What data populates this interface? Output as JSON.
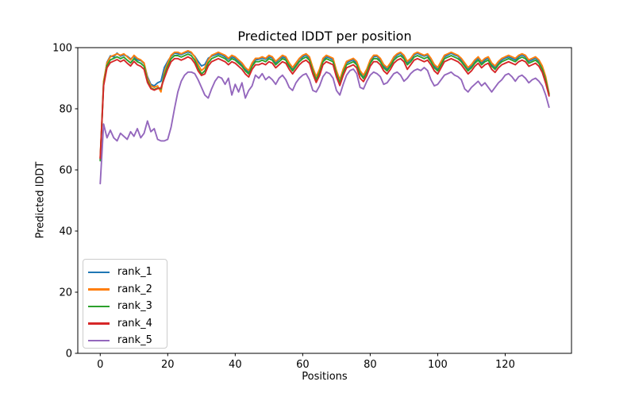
{
  "chart_data": {
    "type": "line",
    "title": "Predicted lDDT per position",
    "xlabel": "Positions",
    "ylabel": "Predicted lDDT",
    "xlim": [
      -6.65,
      139.65
    ],
    "ylim": [
      0,
      100
    ],
    "x_ticks": [
      0,
      20,
      40,
      60,
      80,
      100,
      120
    ],
    "y_ticks": [
      0,
      20,
      40,
      60,
      80,
      100
    ],
    "grid": false,
    "legend_position": "lower left",
    "axes_color": "#000000",
    "x_start": 0,
    "x_step": 1,
    "series": [
      {
        "name": "rank_1",
        "color": "#1f77b4",
        "values": [
          63.5,
          88.5,
          95.2,
          97.3,
          97.0,
          98.2,
          97.2,
          97.6,
          97.2,
          96.3,
          97.1,
          96.0,
          95.8,
          94.8,
          90.5,
          88.0,
          87.5,
          88.5,
          89.0,
          93.5,
          95.5,
          97.2,
          98.2,
          98.0,
          97.7,
          98.2,
          98.6,
          98.2,
          97.2,
          95.5,
          94.0,
          94.5,
          96.5,
          97.2,
          97.6,
          98.0,
          97.6,
          97.0,
          96.2,
          97.0,
          96.5,
          95.5,
          94.5,
          93.0,
          92.0,
          94.5,
          96.0,
          96.2,
          96.6,
          96.2,
          97.0,
          96.6,
          95.0,
          96.2,
          97.0,
          96.5,
          94.5,
          93.0,
          94.6,
          96.2,
          97.0,
          97.6,
          96.5,
          93.0,
          90.0,
          92.6,
          96.0,
          97.0,
          96.6,
          96.0,
          92.0,
          88.8,
          92.5,
          95.0,
          95.6,
          96.0,
          95.0,
          92.0,
          90.5,
          92.6,
          95.5,
          97.0,
          97.2,
          96.0,
          94.0,
          93.0,
          94.6,
          96.6,
          97.6,
          98.2,
          97.0,
          95.0,
          96.2,
          97.6,
          98.2,
          97.6,
          97.2,
          97.6,
          96.0,
          94.0,
          93.0,
          95.0,
          97.0,
          97.6,
          98.2,
          97.6,
          97.2,
          96.0,
          94.5,
          93.0,
          94.0,
          95.5,
          96.6,
          95.0,
          96.0,
          96.6,
          94.5,
          93.5,
          95.0,
          96.0,
          96.6,
          97.0,
          96.5,
          96.0,
          97.0,
          97.6,
          97.0,
          95.5,
          96.0,
          96.6,
          95.5,
          93.5,
          90.0,
          84.5
        ]
      },
      {
        "name": "rank_2",
        "color": "#ff7f0e",
        "values": [
          64.0,
          89.0,
          95.0,
          97.0,
          97.5,
          98.0,
          97.5,
          98.0,
          97.0,
          96.0,
          97.5,
          96.5,
          96.0,
          95.0,
          90.0,
          87.5,
          87.0,
          87.5,
          85.5,
          92.0,
          95.0,
          97.5,
          98.5,
          98.5,
          98.0,
          98.5,
          99.0,
          98.5,
          97.0,
          94.5,
          92.5,
          93.5,
          96.0,
          97.5,
          98.0,
          98.5,
          98.0,
          97.5,
          96.5,
          97.5,
          97.0,
          96.0,
          95.0,
          93.5,
          92.5,
          95.0,
          96.5,
          96.5,
          97.0,
          96.5,
          97.5,
          97.0,
          95.5,
          96.5,
          97.5,
          97.0,
          95.0,
          93.5,
          95.0,
          96.5,
          97.5,
          98.0,
          97.0,
          93.5,
          90.5,
          93.0,
          96.5,
          97.5,
          97.0,
          96.5,
          92.5,
          89.5,
          93.0,
          95.5,
          96.0,
          96.5,
          95.5,
          92.5,
          91.0,
          93.0,
          96.0,
          97.5,
          97.5,
          96.5,
          94.5,
          93.5,
          95.0,
          97.0,
          98.0,
          98.5,
          97.5,
          95.5,
          96.5,
          98.0,
          98.5,
          98.0,
          97.5,
          98.0,
          96.5,
          94.5,
          93.5,
          95.5,
          97.5,
          98.0,
          98.5,
          98.0,
          97.5,
          96.5,
          95.0,
          93.5,
          94.5,
          96.0,
          97.0,
          95.5,
          96.5,
          97.0,
          95.0,
          94.0,
          95.5,
          96.5,
          97.0,
          97.5,
          97.0,
          96.5,
          97.5,
          98.0,
          97.5,
          96.0,
          96.5,
          97.0,
          96.0,
          94.0,
          90.5,
          85.0
        ]
      },
      {
        "name": "rank_3",
        "color": "#2ca02c",
        "values": [
          63.0,
          88.0,
          94.2,
          96.0,
          96.5,
          97.0,
          96.4,
          96.9,
          95.9,
          95.0,
          96.4,
          95.4,
          94.9,
          93.9,
          89.2,
          86.8,
          86.3,
          86.8,
          86.5,
          91.0,
          94.0,
          96.4,
          97.4,
          97.4,
          96.9,
          97.4,
          97.9,
          97.4,
          95.9,
          93.4,
          91.4,
          92.4,
          95.0,
          96.4,
          96.9,
          97.4,
          96.9,
          96.4,
          95.4,
          96.4,
          95.9,
          94.9,
          93.9,
          92.4,
          91.4,
          93.9,
          95.4,
          95.4,
          95.9,
          95.4,
          96.4,
          95.9,
          94.4,
          95.4,
          96.4,
          95.9,
          93.9,
          92.4,
          93.9,
          95.4,
          96.4,
          96.9,
          95.9,
          92.4,
          89.4,
          91.9,
          95.4,
          96.4,
          95.9,
          95.4,
          91.4,
          88.4,
          91.9,
          94.4,
          94.9,
          95.4,
          94.4,
          91.4,
          89.9,
          91.9,
          94.9,
          96.4,
          96.4,
          95.4,
          93.4,
          92.4,
          93.9,
          95.9,
          96.9,
          97.4,
          96.4,
          94.4,
          95.4,
          96.9,
          97.4,
          96.9,
          96.4,
          96.9,
          95.4,
          93.4,
          92.4,
          94.4,
          96.4,
          96.9,
          97.4,
          96.9,
          96.4,
          95.4,
          93.9,
          92.4,
          93.4,
          94.9,
          95.9,
          94.4,
          95.4,
          95.9,
          93.9,
          92.9,
          94.4,
          95.4,
          95.9,
          96.4,
          95.9,
          95.4,
          96.4,
          96.9,
          96.4,
          94.9,
          95.4,
          95.9,
          94.9,
          92.9,
          89.4,
          84.8
        ]
      },
      {
        "name": "rank_4",
        "color": "#d62728",
        "values": [
          63.8,
          87.5,
          93.4,
          95.1,
          95.6,
          96.1,
          95.4,
          96.0,
          94.9,
          94.0,
          95.5,
          94.4,
          93.9,
          92.9,
          88.6,
          86.6,
          86.1,
          86.6,
          86.8,
          90.0,
          93.0,
          95.4,
          96.4,
          96.4,
          95.9,
          96.4,
          97.0,
          96.4,
          94.9,
          92.4,
          90.9,
          91.4,
          94.0,
          95.4,
          95.9,
          96.4,
          95.9,
          95.4,
          94.4,
          95.4,
          94.9,
          93.9,
          92.9,
          91.4,
          90.4,
          92.9,
          94.4,
          94.4,
          94.9,
          94.4,
          95.4,
          94.9,
          93.4,
          94.4,
          95.4,
          94.9,
          92.9,
          91.4,
          92.9,
          94.4,
          95.4,
          95.9,
          94.9,
          91.4,
          88.6,
          90.9,
          94.4,
          95.4,
          94.9,
          94.4,
          90.4,
          87.6,
          90.9,
          93.4,
          93.9,
          94.4,
          93.4,
          90.0,
          88.9,
          90.9,
          93.9,
          95.4,
          95.4,
          94.4,
          92.4,
          91.4,
          92.9,
          94.9,
          95.9,
          96.4,
          95.4,
          92.9,
          94.4,
          95.9,
          96.4,
          95.9,
          95.4,
          95.9,
          94.4,
          92.4,
          91.4,
          93.4,
          95.4,
          95.9,
          96.4,
          95.9,
          95.4,
          94.4,
          92.9,
          91.4,
          92.4,
          93.9,
          94.9,
          93.4,
          94.4,
          94.9,
          92.9,
          91.9,
          93.4,
          94.4,
          94.9,
          95.4,
          94.9,
          94.4,
          95.4,
          95.9,
          95.4,
          93.9,
          94.4,
          94.9,
          93.9,
          91.9,
          88.4,
          84.2
        ]
      },
      {
        "name": "rank_5",
        "color": "#9467bd",
        "values": [
          55.5,
          75.0,
          70.5,
          73.0,
          70.5,
          69.5,
          72.0,
          71.0,
          70.0,
          72.5,
          71.0,
          73.5,
          70.5,
          72.0,
          76.0,
          72.5,
          73.5,
          70.0,
          69.5,
          69.5,
          70.0,
          74.0,
          80.0,
          85.5,
          89.0,
          91.0,
          92.0,
          92.0,
          91.5,
          89.5,
          87.0,
          84.5,
          83.5,
          86.5,
          89.0,
          90.5,
          90.0,
          88.0,
          90.0,
          84.5,
          88.0,
          85.5,
          88.5,
          83.5,
          86.0,
          87.5,
          91.0,
          90.0,
          91.5,
          89.5,
          90.5,
          89.5,
          88.0,
          90.0,
          91.0,
          89.5,
          87.0,
          86.0,
          88.5,
          90.0,
          91.0,
          91.5,
          89.5,
          86.0,
          85.5,
          87.5,
          90.5,
          92.0,
          91.5,
          90.0,
          86.0,
          84.5,
          88.0,
          91.0,
          92.5,
          93.0,
          91.5,
          87.0,
          86.5,
          89.0,
          91.0,
          92.0,
          91.5,
          90.5,
          88.0,
          88.5,
          90.0,
          91.5,
          92.0,
          91.0,
          89.0,
          90.0,
          91.5,
          92.5,
          93.0,
          92.5,
          93.5,
          92.5,
          89.5,
          87.5,
          88.0,
          89.5,
          91.0,
          91.5,
          92.0,
          91.0,
          90.5,
          89.5,
          86.5,
          85.5,
          87.0,
          88.0,
          89.0,
          87.5,
          88.5,
          87.0,
          85.5,
          87.0,
          88.5,
          89.5,
          91.0,
          91.5,
          90.5,
          89.0,
          90.5,
          91.0,
          90.0,
          88.5,
          89.5,
          90.0,
          89.0,
          87.5,
          84.5,
          80.5
        ]
      }
    ]
  }
}
